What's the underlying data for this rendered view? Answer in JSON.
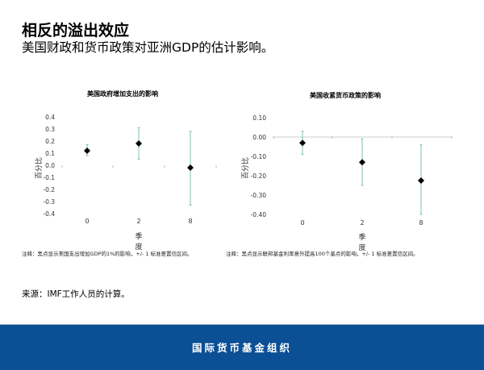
{
  "header": {
    "title": "相反的溢出效应",
    "subtitle": "美国财政和货币政策对亚洲GDP的估计影响。"
  },
  "colors": {
    "marker": "#000000",
    "errorbar": "#7fbfb8",
    "axis": "#cccccc",
    "footer_bg": "#0b4f95"
  },
  "chart_data": [
    {
      "type": "scatter",
      "title": "美国政府增加支出的影响",
      "xlabel": "季度",
      "ylabel": "百分比",
      "categories": [
        "0",
        "2",
        "8"
      ],
      "values": [
        0.12,
        0.18,
        -0.02
      ],
      "error_low": [
        0.08,
        0.05,
        -0.33
      ],
      "error_high": [
        0.17,
        0.31,
        0.28
      ],
      "yticks": [
        "0.4",
        "0.3",
        "0.2",
        "0.1",
        "0.0",
        "-0.1",
        "-0.2",
        "-0.3",
        "-0.4"
      ],
      "ylim": [
        -0.4,
        0.4
      ],
      "grid": false,
      "note": "注释：黑点显示美国支出增加GDP的1%的影响，+/- 1 标准差置信区间。"
    },
    {
      "type": "scatter",
      "title": "美国收紧货币政策的影响",
      "xlabel": "季度",
      "ylabel": "百分比",
      "categories": [
        "0",
        "2",
        "8"
      ],
      "values": [
        -0.03,
        -0.13,
        -0.225
      ],
      "error_low": [
        -0.09,
        -0.25,
        -0.4
      ],
      "error_high": [
        0.03,
        -0.01,
        -0.04
      ],
      "yticks": [
        "0.10",
        "0.00",
        "-0.10",
        "-0.20",
        "-0.30",
        "-0.40"
      ],
      "ylim": [
        -0.4,
        0.1
      ],
      "grid": false,
      "note": "注释：黑点显示联邦基金利率意外提高100个基点的影响，+/- 1 标准差置信区间。"
    }
  ],
  "source": "来源：IMF工作人员的计算。",
  "footer": {
    "org_name": "国际货币基金组织"
  }
}
